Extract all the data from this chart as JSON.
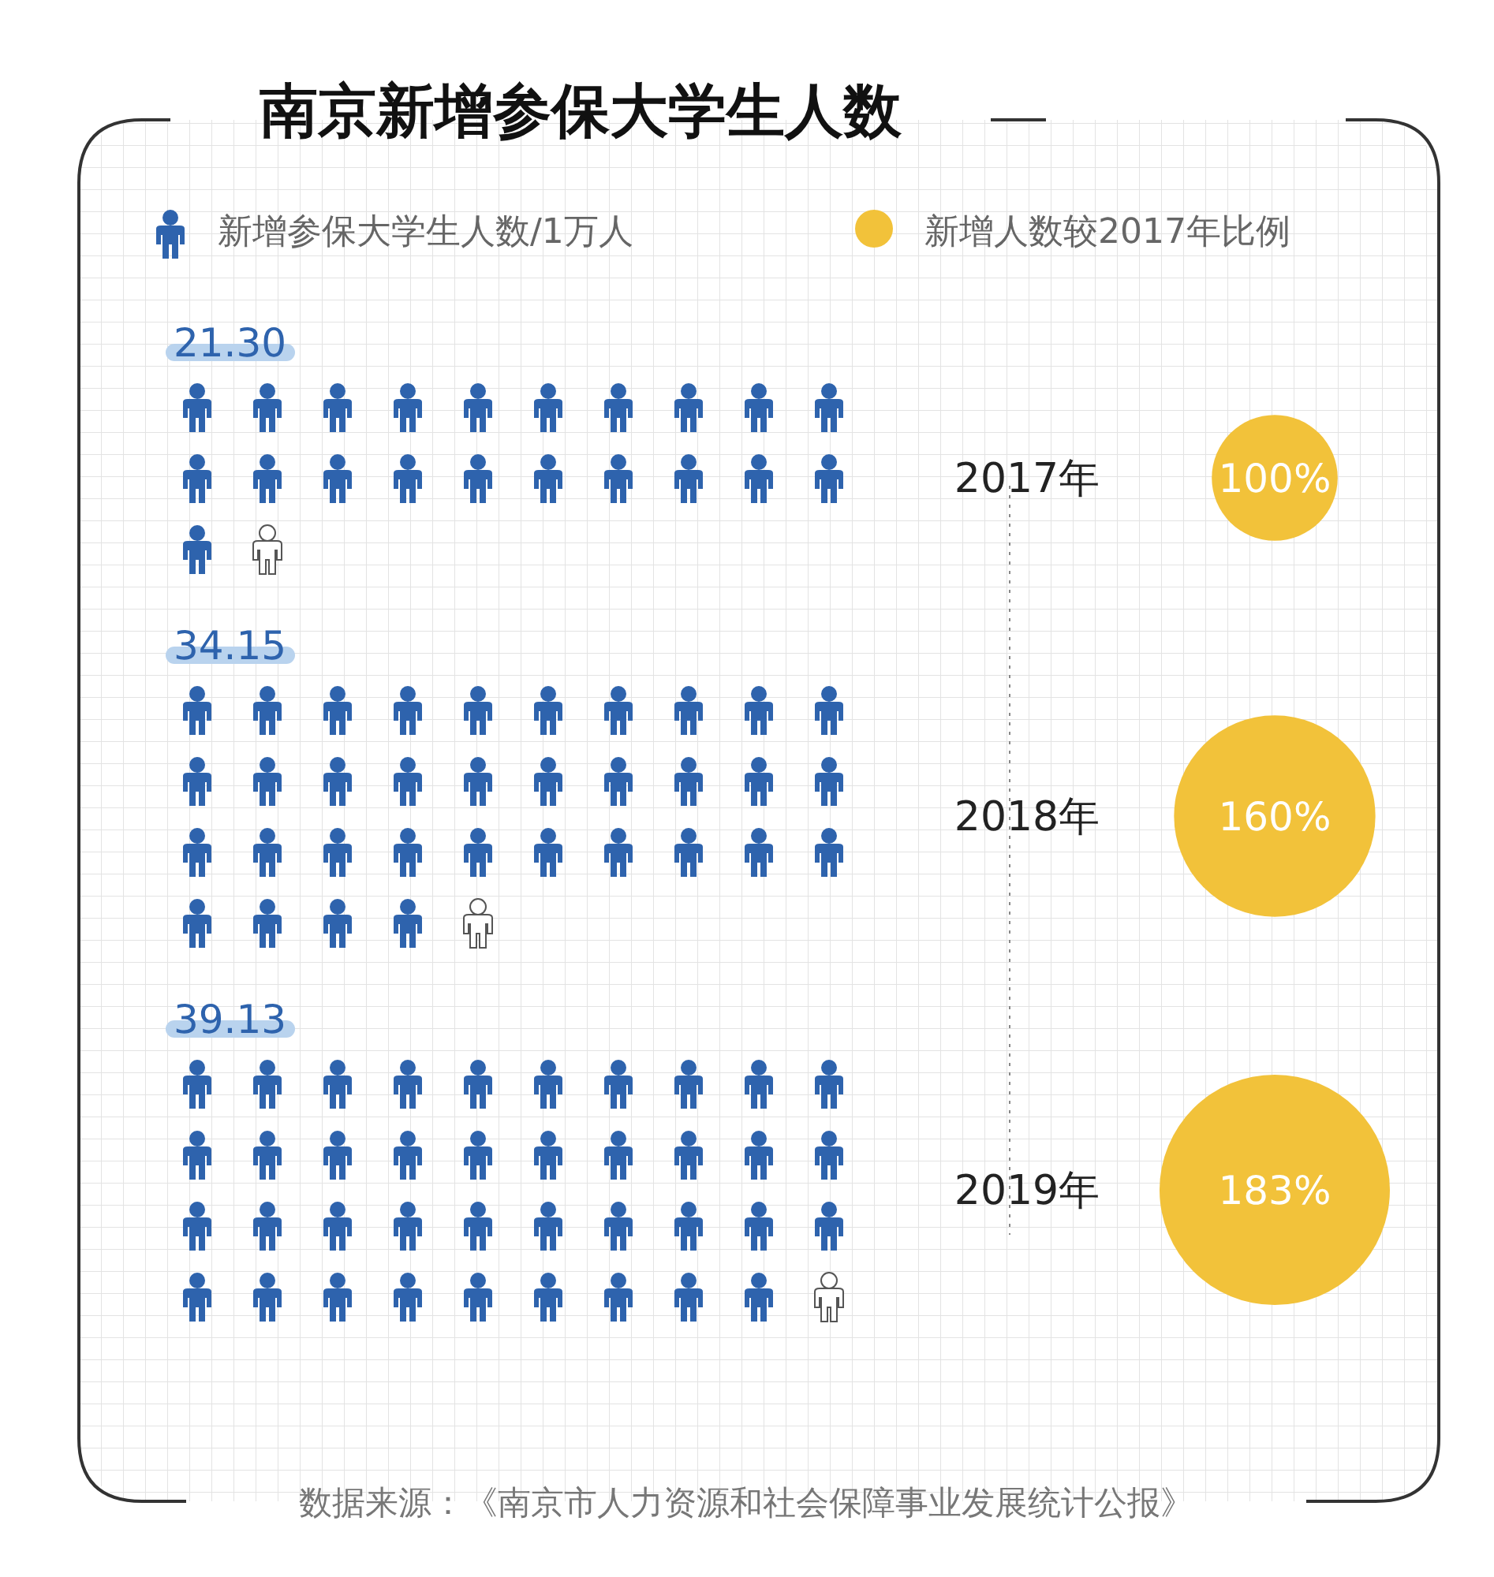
{
  "chart_data": {
    "type": "other",
    "title": "南京新增参保大学生人数",
    "categories": [
      "2017年",
      "2018年",
      "2019年"
    ],
    "series": [
      {
        "name": "新增参保大学生人数/1万人",
        "color": "#2e63ad",
        "values": [
          21.3,
          34.15,
          39.13
        ],
        "value_labels": [
          "21.30",
          "34.15",
          "39.13"
        ]
      },
      {
        "name": "新增人数较2017年比例",
        "color": "#f2c23a",
        "values": [
          100,
          160,
          183
        ],
        "value_labels": [
          "100%",
          "160%",
          "183%"
        ]
      }
    ],
    "legend": "top",
    "annotations": [
      "数据来源：《南京市人力资源和社会保障事业发展统计公报》"
    ]
  }
}
